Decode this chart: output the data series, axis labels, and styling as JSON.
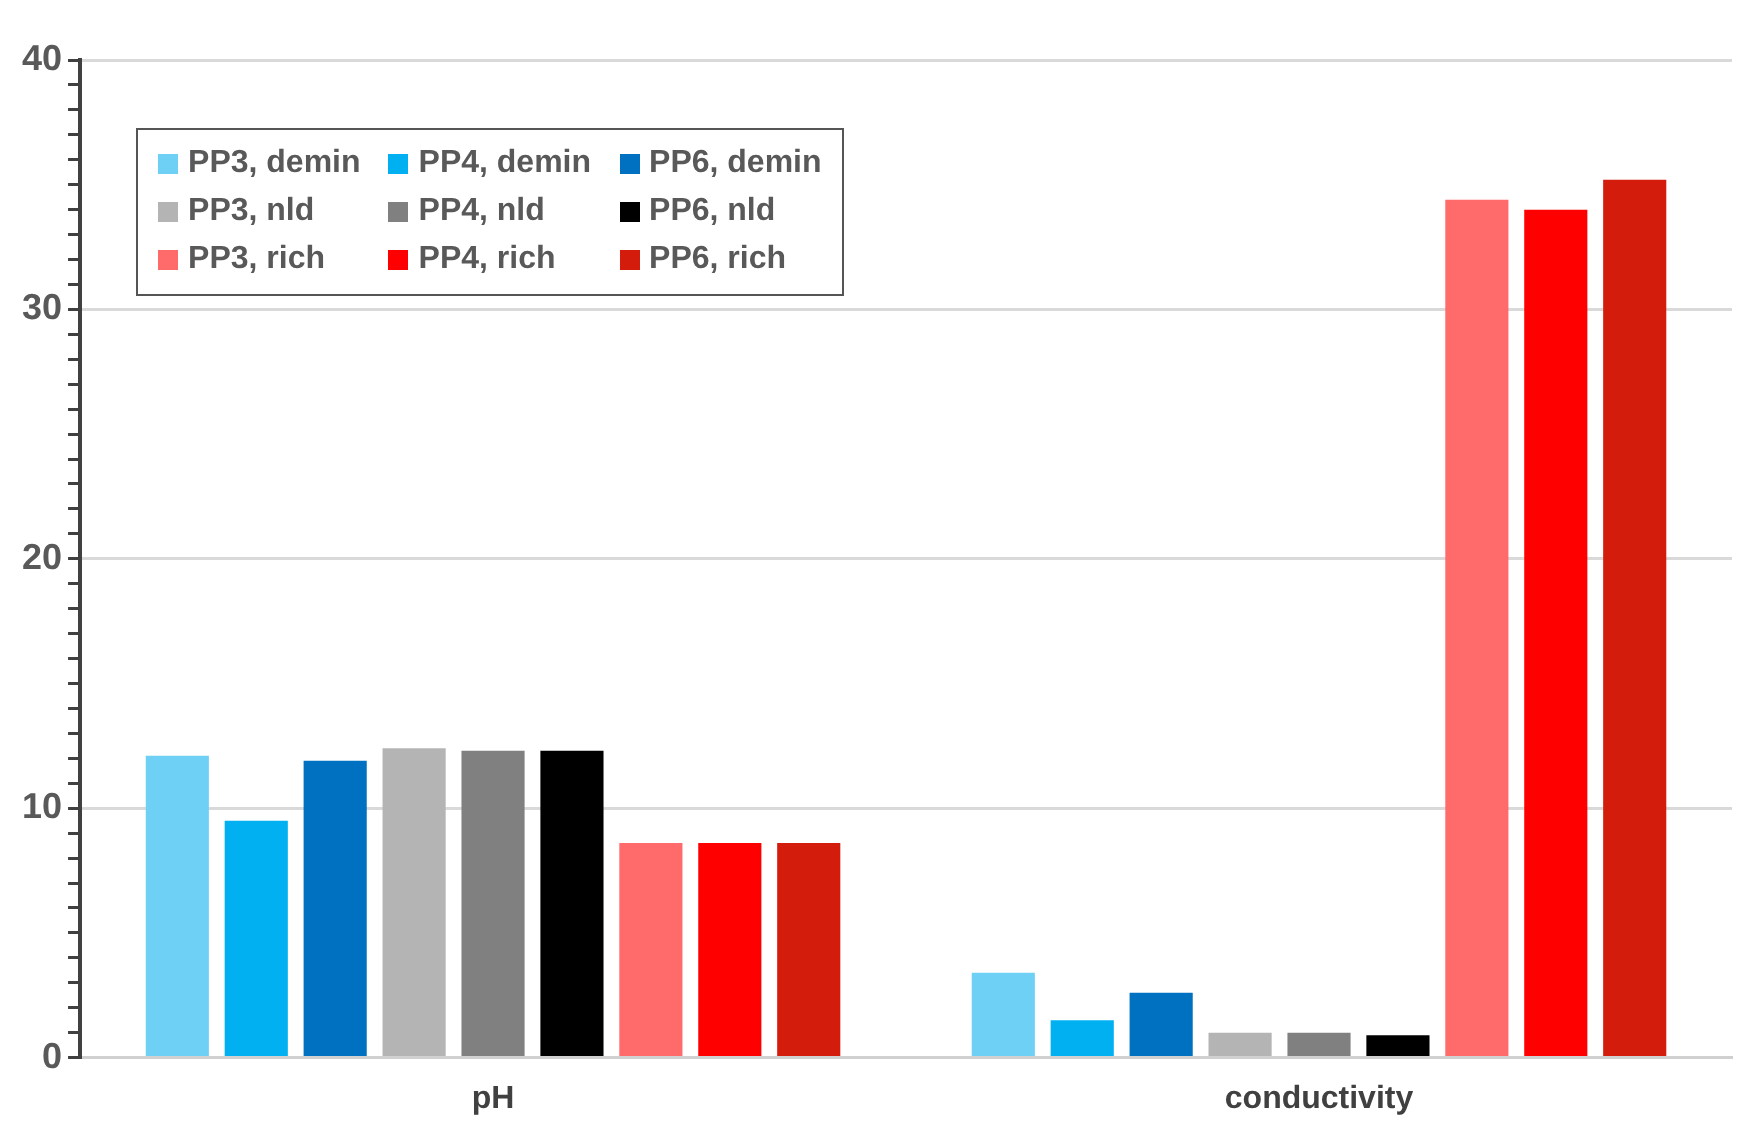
{
  "chart_data": {
    "type": "bar",
    "categories": [
      "pH",
      "conductivity"
    ],
    "series": [
      {
        "name": "PP3, demin",
        "color": "#6fd0f6",
        "values": [
          12.1,
          3.4
        ]
      },
      {
        "name": "PP4, demin",
        "color": "#00b0f0",
        "values": [
          9.5,
          1.5
        ]
      },
      {
        "name": "PP6, demin",
        "color": "#0070c0",
        "values": [
          11.9,
          2.6
        ]
      },
      {
        "name": "PP3, nld",
        "color": "#b4b4b4",
        "values": [
          12.4,
          1.0
        ]
      },
      {
        "name": "PP4, nld",
        "color": "#808080",
        "values": [
          12.3,
          1.0
        ]
      },
      {
        "name": "PP6, nld",
        "color": "#000000",
        "values": [
          12.3,
          0.9
        ]
      },
      {
        "name": "PP3, rich",
        "color": "#ff6a6a",
        "values": [
          8.6,
          34.4
        ]
      },
      {
        "name": "PP4, rich",
        "color": "#ff0000",
        "values": [
          8.6,
          34.0
        ]
      },
      {
        "name": "PP6, rich",
        "color": "#d41c0c",
        "values": [
          8.6,
          35.2
        ]
      }
    ],
    "ylim": [
      0,
      40
    ],
    "yticks": [
      0,
      {
        "value": 1,
        "label": null
      },
      {
        "value": 2,
        "label": null
      },
      {
        "value": 3,
        "label": null
      },
      {
        "value": 4,
        "label": null
      },
      {
        "value": 5,
        "label": null
      },
      {
        "value": 6,
        "label": null
      },
      {
        "value": 7,
        "label": null
      },
      {
        "value": 8,
        "label": null
      },
      {
        "value": 9,
        "label": null
      },
      10,
      {
        "value": 11,
        "label": null
      },
      {
        "value": 12,
        "label": null
      },
      {
        "value": 13,
        "label": null
      },
      {
        "value": 14,
        "label": null
      },
      {
        "value": 15,
        "label": null
      },
      {
        "value": 16,
        "label": null
      },
      {
        "value": 17,
        "label": null
      },
      {
        "value": 18,
        "label": null
      },
      {
        "value": 19,
        "label": null
      },
      20,
      {
        "value": 21,
        "label": null
      },
      {
        "value": 22,
        "label": null
      },
      {
        "value": 23,
        "label": null
      },
      {
        "value": 24,
        "label": null
      },
      {
        "value": 25,
        "label": null
      },
      {
        "value": 26,
        "label": null
      },
      {
        "value": 27,
        "label": null
      },
      {
        "value": 28,
        "label": null
      },
      {
        "value": 29,
        "label": null
      },
      30,
      {
        "value": 31,
        "label": null
      },
      {
        "value": 32,
        "label": null
      },
      {
        "value": 33,
        "label": null
      },
      {
        "value": 34,
        "label": null
      },
      {
        "value": 35,
        "label": null
      },
      {
        "value": 36,
        "label": null
      },
      {
        "value": 37,
        "label": null
      },
      {
        "value": 38,
        "label": null
      },
      {
        "value": 39,
        "label": null
      },
      40
    ],
    "grid": "y",
    "legend": "top left"
  }
}
